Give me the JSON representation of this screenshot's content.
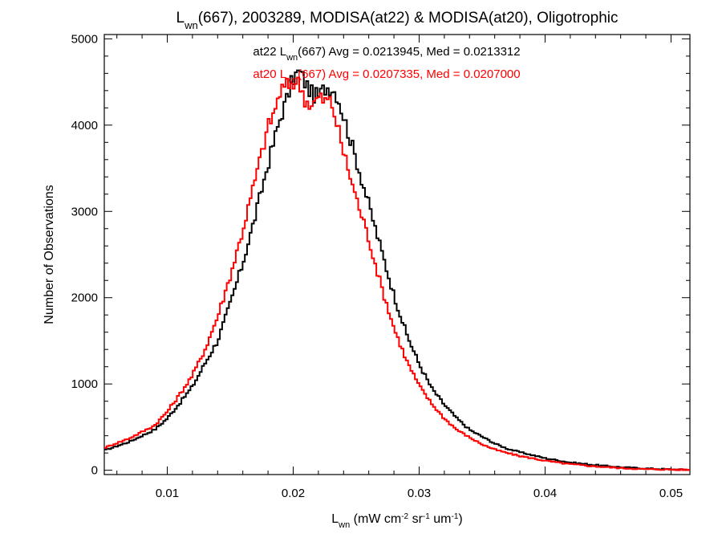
{
  "chart_data": {
    "type": "line",
    "title": {
      "main": "L",
      "sub": "wn",
      "rest": "(667), 2003289, MODISA(at22) & MODISA(at20), Oligotrophic"
    },
    "xlabel": {
      "main": "L",
      "sub": "wn",
      "p1": " (mW cm",
      "sup1": "-2",
      "p2": " sr",
      "sup2": "-1",
      "p3": " um",
      "sup3": "-1",
      "p4": ")"
    },
    "ylabel": "Number of Observations",
    "xlim": [
      0.005,
      0.0515
    ],
    "ylim": [
      -50,
      5050
    ],
    "x_ticks": [
      0.01,
      0.02,
      0.03,
      0.04,
      0.05
    ],
    "x_tick_labels": [
      "0.01",
      "0.02",
      "0.03",
      "0.04",
      "0.05"
    ],
    "y_ticks": [
      0,
      1000,
      2000,
      3000,
      4000,
      5000
    ],
    "y_tick_labels": [
      "0",
      "1000",
      "2000",
      "3000",
      "4000",
      "5000"
    ],
    "grid": false,
    "annotations": [
      {
        "prefix": "at22 L",
        "sub": "wn",
        "rest": "(667) Avg = 0.0213945, Med = 0.0213312",
        "color": "#000000"
      },
      {
        "prefix": "at20 L",
        "sub": "wn",
        "rest": "(667) Avg = 0.0207335, Med = 0.0207000",
        "color": "#ff0000"
      }
    ],
    "series": [
      {
        "color": "#000000",
        "x": [
          0.005,
          0.007,
          0.009,
          0.01,
          0.011,
          0.012,
          0.013,
          0.014,
          0.015,
          0.016,
          0.017,
          0.018,
          0.019,
          0.0195,
          0.02,
          0.0205,
          0.021,
          0.0215,
          0.022,
          0.0225,
          0.023,
          0.0235,
          0.024,
          0.025,
          0.026,
          0.027,
          0.028,
          0.029,
          0.03,
          0.031,
          0.032,
          0.033,
          0.034,
          0.035,
          0.036,
          0.037,
          0.038,
          0.04,
          0.042,
          0.044,
          0.046,
          0.048,
          0.05,
          0.0515
        ],
        "y": [
          230,
          330,
          470,
          600,
          780,
          970,
          1240,
          1500,
          1930,
          2400,
          2950,
          3550,
          4100,
          4300,
          4550,
          4620,
          4480,
          4360,
          4330,
          4430,
          4450,
          4350,
          4100,
          3600,
          3080,
          2550,
          2030,
          1580,
          1230,
          950,
          760,
          600,
          470,
          390,
          310,
          250,
          210,
          140,
          90,
          60,
          35,
          20,
          10,
          5
        ]
      },
      {
        "color": "#ff0000",
        "x": [
          0.005,
          0.007,
          0.009,
          0.01,
          0.011,
          0.012,
          0.013,
          0.014,
          0.015,
          0.016,
          0.017,
          0.018,
          0.0185,
          0.019,
          0.0195,
          0.02,
          0.0205,
          0.021,
          0.0215,
          0.022,
          0.0225,
          0.023,
          0.0235,
          0.024,
          0.025,
          0.026,
          0.027,
          0.028,
          0.029,
          0.03,
          0.031,
          0.032,
          0.033,
          0.034,
          0.035,
          0.036,
          0.037,
          0.038,
          0.04,
          0.042,
          0.044,
          0.046,
          0.048,
          0.05,
          0.0515
        ],
        "y": [
          260,
          370,
          520,
          680,
          880,
          1100,
          1400,
          1780,
          2250,
          2780,
          3380,
          3980,
          4150,
          4400,
          4450,
          4500,
          4480,
          4280,
          4230,
          4320,
          4280,
          4280,
          4000,
          3680,
          3160,
          2680,
          2130,
          1650,
          1270,
          980,
          770,
          600,
          470,
          380,
          300,
          240,
          200,
          165,
          110,
          70,
          45,
          25,
          12,
          8,
          5
        ]
      }
    ]
  }
}
